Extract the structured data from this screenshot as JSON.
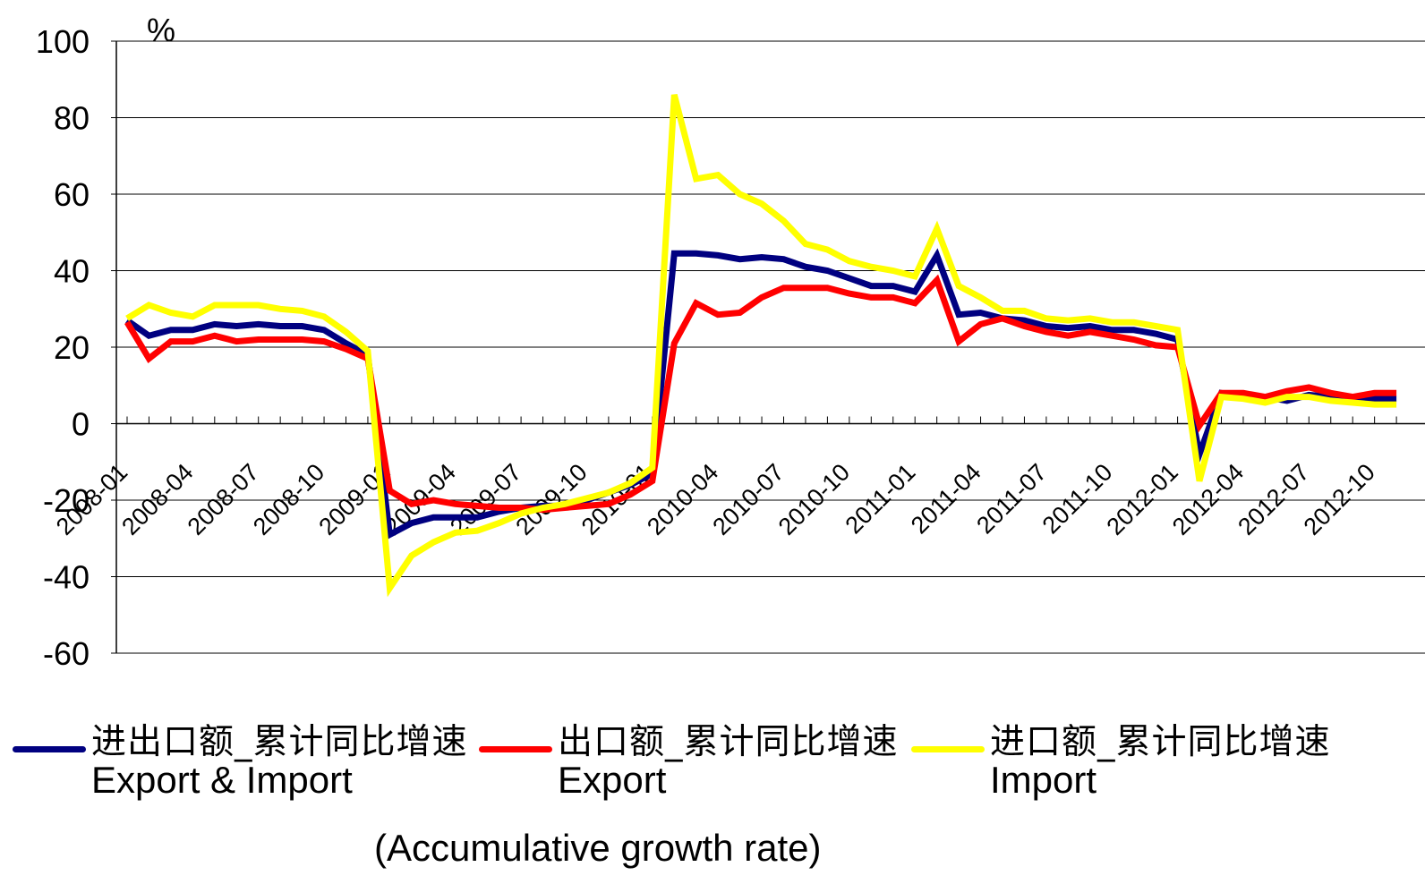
{
  "chart_data": {
    "type": "line",
    "y_unit": "%",
    "ylim": [
      -60,
      100
    ],
    "yticks": [
      100,
      80,
      60,
      40,
      20,
      0,
      -20,
      -40,
      -60
    ],
    "grid": "horizontal",
    "legend_position": "bottom",
    "x_tick_labels": [
      "2008-01",
      "2008-04",
      "2008-07",
      "2008-10",
      "2009-01",
      "2009-04",
      "2009-07",
      "2009-10",
      "2010-01",
      "2010-04",
      "2010-07",
      "2010-10",
      "2011-01",
      "2011-04",
      "2011-07",
      "2011-10",
      "2012-01",
      "2012-04",
      "2012-07",
      "2012-10"
    ],
    "x": [
      "2008-01",
      "2008-02",
      "2008-03",
      "2008-04",
      "2008-05",
      "2008-06",
      "2008-07",
      "2008-08",
      "2008-09",
      "2008-10",
      "2008-11",
      "2008-12",
      "2009-01",
      "2009-02",
      "2009-03",
      "2009-04",
      "2009-05",
      "2009-06",
      "2009-07",
      "2009-08",
      "2009-09",
      "2009-10",
      "2009-11",
      "2009-12",
      "2010-01",
      "2010-02",
      "2010-03",
      "2010-04",
      "2010-05",
      "2010-06",
      "2010-07",
      "2010-08",
      "2010-09",
      "2010-10",
      "2010-11",
      "2010-12",
      "2011-01",
      "2011-02",
      "2011-03",
      "2011-04",
      "2011-05",
      "2011-06",
      "2011-07",
      "2011-08",
      "2011-09",
      "2011-10",
      "2011-11",
      "2011-12",
      "2012-01",
      "2012-02",
      "2012-03",
      "2012-04",
      "2012-05",
      "2012-06",
      "2012-07",
      "2012-08",
      "2012-09",
      "2012-10",
      "2012-11"
    ],
    "series": [
      {
        "name": "进出口额_累计同比增速",
        "name_en": "Export & Import",
        "color": "#000080",
        "values": [
          27,
          23,
          24.5,
          24.5,
          26,
          25.5,
          26,
          25.5,
          25.5,
          24.5,
          21,
          18,
          -29,
          -26,
          -24.5,
          -24.5,
          -24.5,
          -23,
          -22,
          -21.5,
          -21.5,
          -20,
          -18,
          -16,
          -13,
          44.5,
          44.5,
          44,
          43,
          43.5,
          43,
          41,
          40,
          38,
          36,
          36,
          34.5,
          44,
          28.5,
          29,
          27.5,
          27,
          25.5,
          25,
          25.5,
          24.5,
          24.5,
          23.5,
          22,
          -8,
          8,
          7,
          7,
          6,
          7.5,
          7,
          6.5,
          6.5,
          6.5
        ]
      },
      {
        "name": "出口额_累计同比增速",
        "name_en": "Export",
        "color": "#ff0000",
        "values": [
          26.5,
          17,
          21.5,
          21.5,
          23,
          21.5,
          22,
          22,
          22,
          21.5,
          19.5,
          17,
          -17.5,
          -21,
          -20,
          -21,
          -21.5,
          -22,
          -22,
          -22.5,
          -22,
          -21.5,
          -21,
          -18.5,
          -15,
          21,
          31.5,
          28.5,
          29,
          33,
          35.5,
          35.5,
          35.5,
          34,
          33,
          33,
          31.5,
          37.5,
          21.5,
          26,
          27.5,
          25.5,
          24,
          23,
          24,
          23,
          22,
          20.5,
          20,
          -0.5,
          8,
          8,
          7,
          8.5,
          9.5,
          8,
          7,
          8,
          8
        ]
      },
      {
        "name": "进口额_累计同比增速",
        "name_en": "Import",
        "color": "#ffff00",
        "values": [
          27.5,
          31,
          29,
          28,
          31,
          31,
          31,
          30,
          29.5,
          28,
          24,
          19,
          -43,
          -34.5,
          -31,
          -28.5,
          -28,
          -26,
          -23.5,
          -22,
          -21,
          -19.5,
          -18,
          -15.5,
          -11.5,
          86,
          64,
          65,
          60,
          57.5,
          53,
          47,
          45.5,
          42.5,
          41,
          40,
          38.5,
          51,
          36,
          33,
          29.5,
          29.5,
          27.5,
          27,
          27.5,
          26.5,
          26.5,
          25.5,
          24.5,
          -15,
          7,
          6.5,
          5.5,
          7,
          7,
          6,
          5.5,
          5,
          5
        ]
      }
    ],
    "annotation": "(Accumulative growth rate)"
  },
  "legend": [
    {
      "cn": "进出口额_累计同比增速",
      "en": "Export & Import",
      "color": "#000080"
    },
    {
      "cn": "出口额_累计同比增速",
      "en": "Export",
      "color": "#ff0000"
    },
    {
      "cn": "进口额_累计同比增速",
      "en": "Import",
      "color": "#ffff00"
    }
  ]
}
